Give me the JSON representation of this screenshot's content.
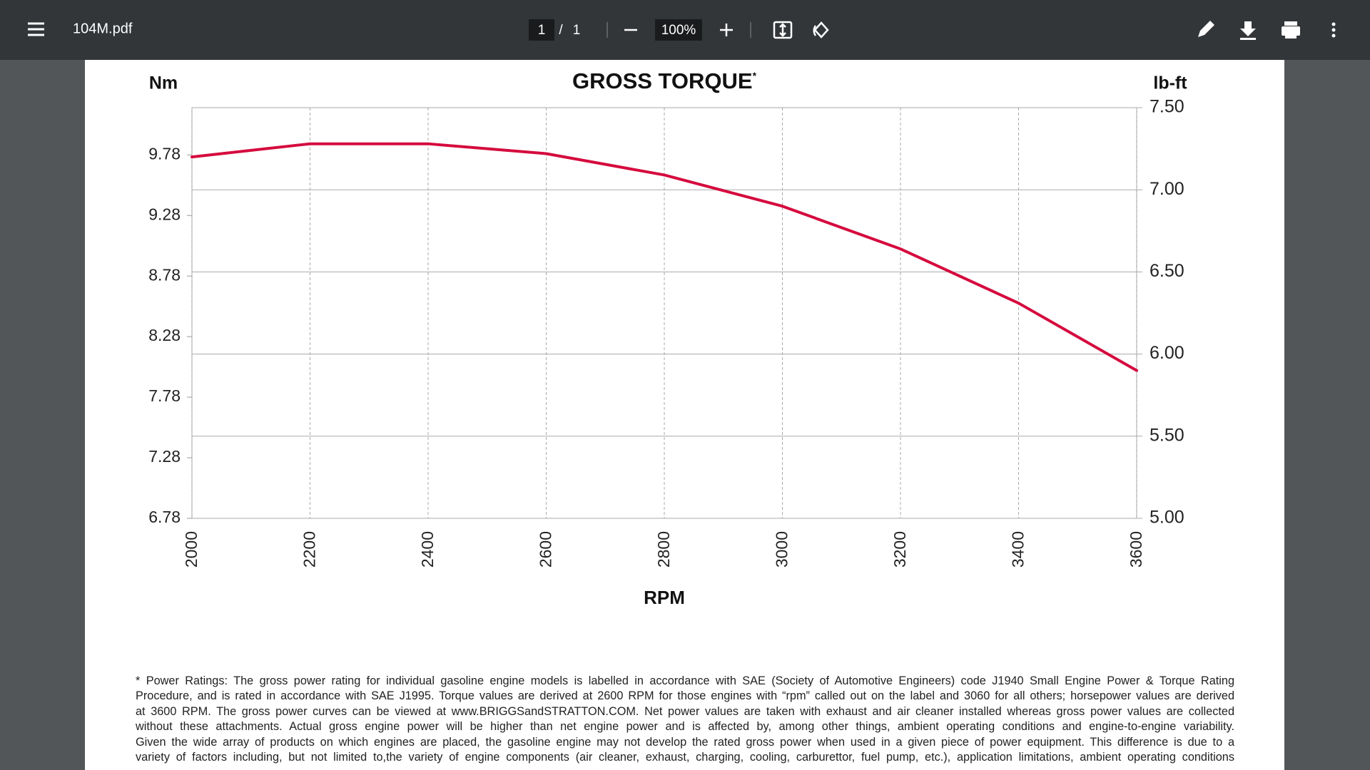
{
  "toolbar": {
    "file_name": "104M.pdf",
    "page_current": "1",
    "page_separator": "/",
    "page_total": "1",
    "zoom": "100%"
  },
  "chart_data": {
    "type": "line",
    "title": "GROSS TORQUE",
    "title_mark": "*",
    "y_label": "Nm",
    "y2_label": "lb-ft",
    "x_label": "RPM",
    "x": [
      2000,
      2200,
      2400,
      2600,
      2800,
      3000,
      3200,
      3400,
      3600
    ],
    "series": [
      {
        "color": "#d50b3e",
        "axis": "y2",
        "values": [
          7.2,
          7.28,
          7.28,
          7.22,
          7.09,
          6.9,
          6.64,
          6.31,
          5.9
        ]
      }
    ],
    "xlim": [
      2000,
      3600
    ],
    "xticks": [
      2000,
      2200,
      2400,
      2600,
      2800,
      3000,
      3200,
      3400,
      3600
    ],
    "ylim": [
      6.78,
      10.17
    ],
    "yticks": [
      6.78,
      7.28,
      7.78,
      8.28,
      8.78,
      9.28,
      9.78
    ],
    "y2lim": [
      5,
      7.5
    ],
    "y2ticks": [
      {
        "value": 5,
        "label": "5.00"
      },
      {
        "value": 5.5,
        "label": "5.50"
      },
      {
        "value": 6,
        "label": "6.00"
      },
      {
        "value": 6.5,
        "label": "6.50"
      },
      {
        "value": 7,
        "label": "7.00"
      },
      {
        "value": 7.5,
        "label": "7.50"
      }
    ],
    "grid": true
  },
  "footnote": {
    "lines": [
      "* Power Ratings: The gross power rating for individual gasoline engine models is labelled in accordance with SAE (Society of Automotive Engineers) code J1940 Small Engine Power & Torque Rating",
      "Procedure, and is rated in accordance with SAE J1995. Torque values are derived at 2600 RPM for those engines with “rpm” called out on the label and 3060 for all others; horsepower values are derived",
      "at 3600 RPM. The gross power curves can be viewed at www.BRIGGSandSTRATTON.COM. Net power values are taken with exhaust and air cleaner installed whereas gross power values are collected",
      "without these attachments. Actual gross engine power will be higher than net engine power and is affected by, among other things, ambient operating conditions and engine-to-engine variability.",
      "Given the wide array of products on which engines are placed, the gasoline engine may not develop the rated gross power when used in a given piece of power equipment. This difference is due to a",
      "variety of factors including, but not limited to,the variety of engine components (air cleaner, exhaust, charging, cooling, carburettor, fuel pump, etc.), application limitations, ambient operating conditions"
    ]
  }
}
